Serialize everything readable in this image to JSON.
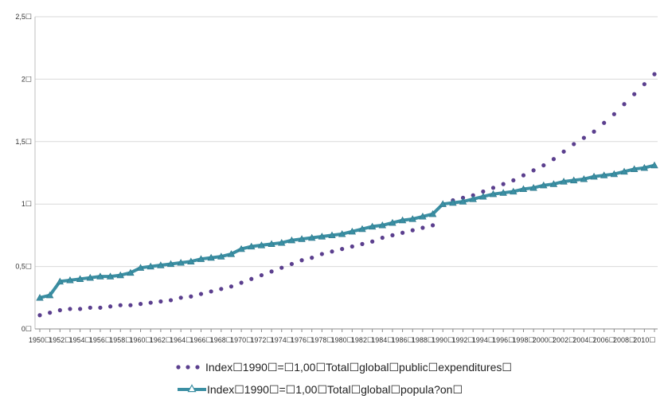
{
  "chart_data": {
    "type": "line",
    "title": "",
    "xlabel": "",
    "ylabel": "",
    "ylim": [
      0,
      2.5
    ],
    "yticks": [
      "0☐",
      "0,5☐",
      "1☐",
      "1,5☐",
      "2☐",
      "2,5☐"
    ],
    "xtick_labels": [
      "1950☐",
      "1952☐",
      "1954☐",
      "1956☐",
      "1958☐",
      "1960☐",
      "1962☐",
      "1964☐",
      "1966☐",
      "1968☐",
      "1970☐",
      "1972☐",
      "1974☐",
      "1976☐",
      "1978☐",
      "1980☐",
      "1982☐",
      "1984☐",
      "1986☐",
      "1988☐",
      "1990☐",
      "1992☐",
      "1994☐",
      "1996☐",
      "1998☐",
      "2000☐",
      "2002☐",
      "2004☐",
      "2006☐",
      "2008☐",
      "2010☐"
    ],
    "x": [
      1950,
      1951,
      1952,
      1953,
      1954,
      1955,
      1956,
      1957,
      1958,
      1959,
      1960,
      1961,
      1962,
      1963,
      1964,
      1965,
      1966,
      1967,
      1968,
      1969,
      1970,
      1971,
      1972,
      1973,
      1974,
      1975,
      1976,
      1977,
      1978,
      1979,
      1980,
      1981,
      1982,
      1983,
      1984,
      1985,
      1986,
      1987,
      1988,
      1989,
      1990,
      1991,
      1992,
      1993,
      1994,
      1995,
      1996,
      1997,
      1998,
      1999,
      2000,
      2001,
      2002,
      2003,
      2004,
      2005,
      2006,
      2007,
      2008,
      2009,
      2010,
      2011
    ],
    "grid": "horizontal",
    "legend_position": "bottom",
    "series": [
      {
        "name": "Index☐1990☐=☐1,00☐Total☐global☐public☐expenditures☐",
        "style": "dotted",
        "color": "#5b3f8e",
        "values": [
          0.11,
          0.13,
          0.15,
          0.16,
          0.16,
          0.17,
          0.17,
          0.18,
          0.19,
          0.19,
          0.2,
          0.21,
          0.22,
          0.23,
          0.25,
          0.26,
          0.28,
          0.3,
          0.32,
          0.34,
          0.37,
          0.4,
          0.43,
          0.46,
          0.49,
          0.52,
          0.55,
          0.57,
          0.6,
          0.62,
          0.64,
          0.66,
          0.68,
          0.7,
          0.73,
          0.75,
          0.77,
          0.79,
          0.81,
          0.83,
          1.0,
          1.03,
          1.05,
          1.07,
          1.1,
          1.13,
          1.16,
          1.19,
          1.23,
          1.27,
          1.31,
          1.36,
          1.42,
          1.48,
          1.53,
          1.58,
          1.65,
          1.72,
          1.8,
          1.88,
          1.96,
          2.04
        ]
      },
      {
        "name": "Index☐1990☐=☐1,00☐Total☐global☐popula?on☐",
        "style": "solid-triangle",
        "color": "#3b8fa3",
        "values": [
          0.25,
          0.27,
          0.38,
          0.39,
          0.4,
          0.41,
          0.42,
          0.42,
          0.43,
          0.45,
          0.49,
          0.5,
          0.51,
          0.52,
          0.53,
          0.54,
          0.56,
          0.57,
          0.58,
          0.6,
          0.64,
          0.66,
          0.67,
          0.68,
          0.69,
          0.71,
          0.72,
          0.73,
          0.74,
          0.75,
          0.76,
          0.78,
          0.8,
          0.82,
          0.83,
          0.85,
          0.87,
          0.88,
          0.9,
          0.92,
          1.0,
          1.01,
          1.02,
          1.04,
          1.06,
          1.08,
          1.09,
          1.1,
          1.12,
          1.13,
          1.15,
          1.16,
          1.18,
          1.19,
          1.2,
          1.22,
          1.23,
          1.24,
          1.26,
          1.28,
          1.29,
          1.31
        ]
      }
    ]
  }
}
